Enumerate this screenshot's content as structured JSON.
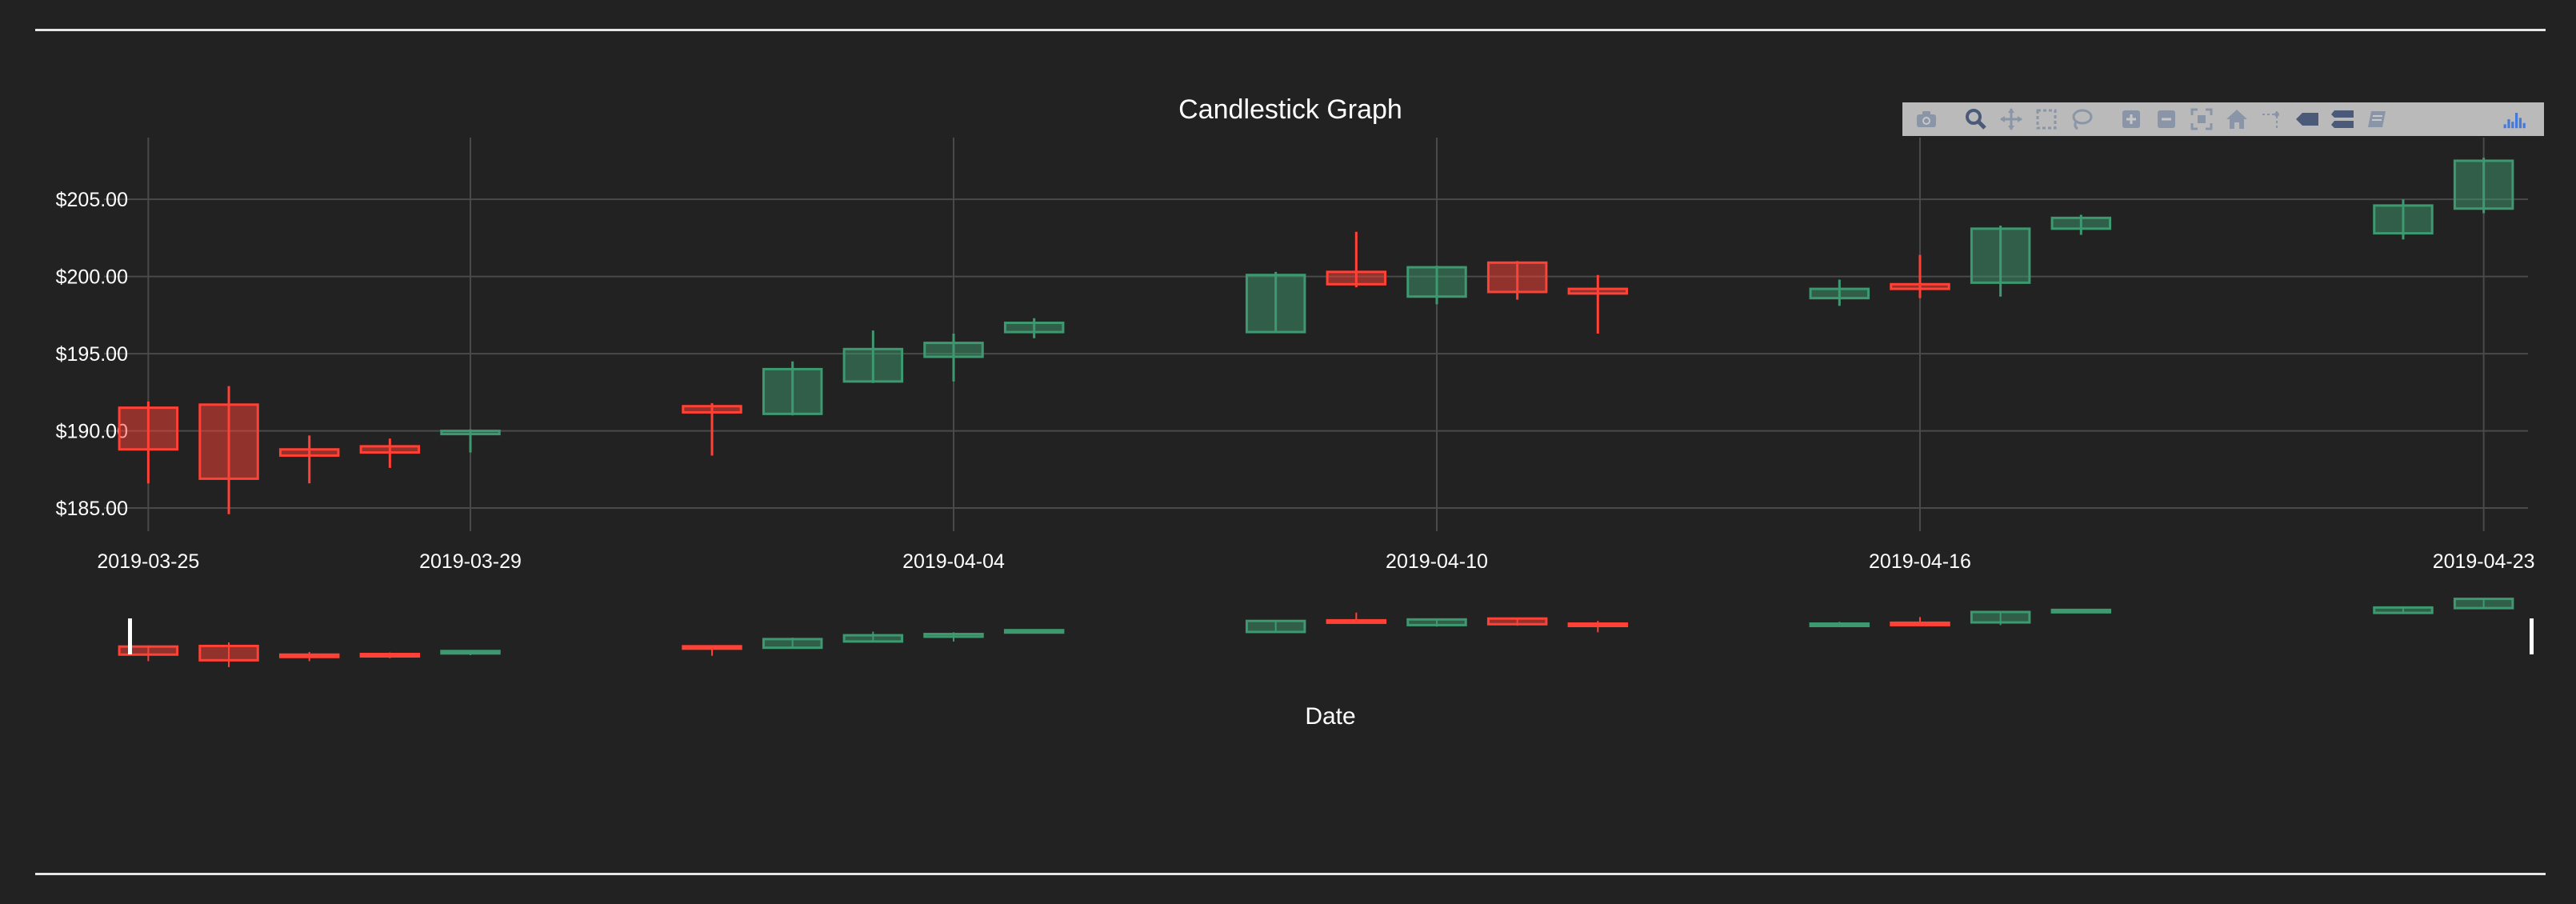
{
  "chart_data": {
    "type": "candlestick",
    "title": "Candlestick Graph",
    "xlabel": "Date",
    "ylabel": "",
    "yticks": [
      "$185.00",
      "$190.00",
      "$195.00",
      "$200.00",
      "$205.00"
    ],
    "ytick_values": [
      185,
      190,
      195,
      200,
      205
    ],
    "xticks": [
      "2019-03-25",
      "2019-03-29",
      "2019-04-04",
      "2019-04-10",
      "2019-04-16",
      "2019-04-23"
    ],
    "ylim": [
      183.5,
      209
    ],
    "grid": true,
    "increasing_color": "#3d9970",
    "decreasing_color": "#ff4136",
    "dates": [
      "2019-03-25",
      "2019-03-26",
      "2019-03-27",
      "2019-03-28",
      "2019-03-29",
      "2019-04-01",
      "2019-04-02",
      "2019-04-03",
      "2019-04-04",
      "2019-04-05",
      "2019-04-08",
      "2019-04-09",
      "2019-04-10",
      "2019-04-11",
      "2019-04-12",
      "2019-04-15",
      "2019-04-16",
      "2019-04-17",
      "2019-04-18",
      "2019-04-22",
      "2019-04-23"
    ],
    "open": [
      191.5,
      191.7,
      188.8,
      189.0,
      189.8,
      191.6,
      191.1,
      193.2,
      194.8,
      196.4,
      196.4,
      200.3,
      198.7,
      200.9,
      199.2,
      198.6,
      199.5,
      199.6,
      203.1,
      202.8,
      204.4
    ],
    "high": [
      191.9,
      192.9,
      189.7,
      189.5,
      190.1,
      191.8,
      194.5,
      196.5,
      196.3,
      197.3,
      200.3,
      202.9,
      200.7,
      201.0,
      200.1,
      199.8,
      201.4,
      203.3,
      204.0,
      205.0,
      207.7
    ],
    "low": [
      186.6,
      184.6,
      186.6,
      187.6,
      188.6,
      188.4,
      191.0,
      193.1,
      193.2,
      196.0,
      196.4,
      199.3,
      198.2,
      198.5,
      196.3,
      198.1,
      198.6,
      198.7,
      202.7,
      202.4,
      204.1
    ],
    "close": [
      188.8,
      186.9,
      188.4,
      188.6,
      190.0,
      191.2,
      194.0,
      195.3,
      195.7,
      197.0,
      200.1,
      199.5,
      200.6,
      199.0,
      198.9,
      199.2,
      199.2,
      203.1,
      203.8,
      204.6,
      207.5
    ]
  },
  "modebar": {
    "buttons": [
      "camera-icon",
      "zoom-icon",
      "pan-icon",
      "box-select-icon",
      "lasso-select-icon",
      "zoom-in-icon",
      "zoom-out-icon",
      "autoscale-icon",
      "reset-axes-icon",
      "spike-lines-icon",
      "hover-closest-icon",
      "hover-compare-icon",
      "edit-chart-icon"
    ],
    "logo": "plotly-logo-icon"
  }
}
